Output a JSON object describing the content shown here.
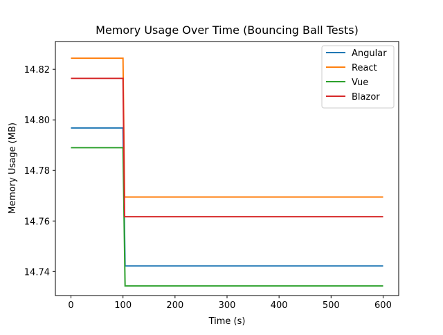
{
  "chart_data": {
    "type": "line",
    "title": "Memory Usage Over Time (Bouncing Ball Tests)",
    "xlabel": "Time (s)",
    "ylabel": "Memory Usage (MB)",
    "xlim": [
      -30,
      630
    ],
    "ylim": [
      14.7305,
      14.831
    ],
    "xticks": [
      0,
      100,
      200,
      300,
      400,
      500,
      600
    ],
    "xtick_labels": [
      "0",
      "100",
      "200",
      "300",
      "400",
      "500",
      "600"
    ],
    "yticks": [
      14.74,
      14.76,
      14.78,
      14.8,
      14.82
    ],
    "ytick_labels": [
      "14.74",
      "14.76",
      "14.78",
      "14.80",
      "14.82"
    ],
    "grid": false,
    "legend_position": "top-right",
    "series": [
      {
        "name": "Angular",
        "color": "#1f77b4",
        "x": [
          0,
          100,
          104,
          600
        ],
        "y": [
          14.7968,
          14.7968,
          14.7422,
          14.7422
        ]
      },
      {
        "name": "React",
        "color": "#ff7f0e",
        "x": [
          0,
          100,
          103,
          600
        ],
        "y": [
          14.8244,
          14.8244,
          14.7695,
          14.7695
        ]
      },
      {
        "name": "Vue",
        "color": "#2ca02c",
        "x": [
          0,
          100,
          104,
          600
        ],
        "y": [
          14.789,
          14.789,
          14.7343,
          14.7343
        ]
      },
      {
        "name": "Blazor",
        "color": "#d62728",
        "x": [
          0,
          100,
          103,
          600
        ],
        "y": [
          14.8164,
          14.8164,
          14.7617,
          14.7617
        ]
      }
    ]
  }
}
